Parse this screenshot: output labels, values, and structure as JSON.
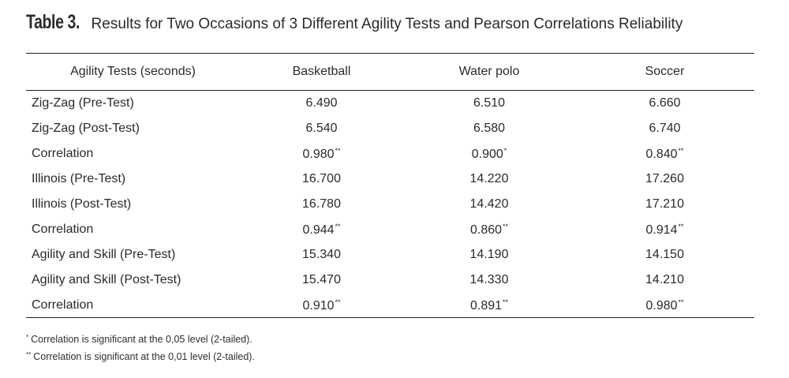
{
  "caption": {
    "label": "Table 3.",
    "text": " Results for Two Occasions of 3 Different Agility Tests and Pearson Correlations Reliability"
  },
  "table": {
    "headers": [
      "Agility Tests (seconds)",
      "Basketball",
      "Water polo",
      "Soccer"
    ],
    "rows": [
      {
        "label": "Zig-Zag (Pre-Test)",
        "cells": [
          {
            "v": "6.490",
            "sig": ""
          },
          {
            "v": "6.510",
            "sig": ""
          },
          {
            "v": "6.660",
            "sig": ""
          }
        ]
      },
      {
        "label": "Zig-Zag (Post-Test)",
        "cells": [
          {
            "v": "6.540",
            "sig": ""
          },
          {
            "v": "6.580",
            "sig": ""
          },
          {
            "v": "6.740",
            "sig": ""
          }
        ]
      },
      {
        "label": "Correlation",
        "cells": [
          {
            "v": "0.980",
            "sig": "**"
          },
          {
            "v": "0.900",
            "sig": "*"
          },
          {
            "v": "0.840",
            "sig": "**"
          }
        ]
      },
      {
        "label": "Illinois (Pre-Test)",
        "cells": [
          {
            "v": "16.700",
            "sig": ""
          },
          {
            "v": "14.220",
            "sig": ""
          },
          {
            "v": "17.260",
            "sig": ""
          }
        ]
      },
      {
        "label": "Illinois (Post-Test)",
        "cells": [
          {
            "v": "16.780",
            "sig": ""
          },
          {
            "v": "14.420",
            "sig": ""
          },
          {
            "v": "17.210",
            "sig": ""
          }
        ]
      },
      {
        "label": "Correlation",
        "cells": [
          {
            "v": "0.944",
            "sig": "**"
          },
          {
            "v": "0.860",
            "sig": "**"
          },
          {
            "v": "0.914",
            "sig": "**"
          }
        ]
      },
      {
        "label": "Agility and Skill (Pre-Test)",
        "cells": [
          {
            "v": "15.340",
            "sig": ""
          },
          {
            "v": "14.190",
            "sig": ""
          },
          {
            "v": "14.150",
            "sig": ""
          }
        ]
      },
      {
        "label": "Agility and Skill (Post-Test)",
        "cells": [
          {
            "v": "15.470",
            "sig": ""
          },
          {
            "v": "14.330",
            "sig": ""
          },
          {
            "v": "14.210",
            "sig": ""
          }
        ]
      },
      {
        "label": "Correlation",
        "cells": [
          {
            "v": "0.910",
            "sig": "**"
          },
          {
            "v": "0.891",
            "sig": "**"
          },
          {
            "v": "0.980",
            "sig": "**"
          }
        ]
      }
    ]
  },
  "notes": [
    {
      "mark": "*",
      "text": "Correlation is significant at the 0,05 level (2-tailed)."
    },
    {
      "mark": "**",
      "text": "Correlation is significant at the 0,01 level (2-tailed)."
    }
  ]
}
